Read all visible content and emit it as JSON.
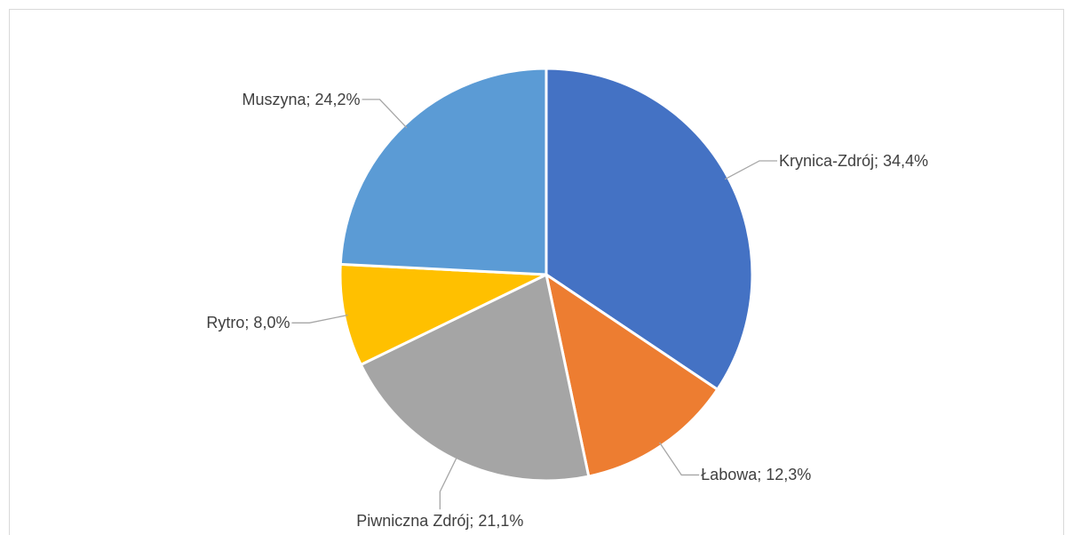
{
  "chart_data": {
    "type": "pie",
    "values": [
      34.4,
      12.3,
      21.1,
      8.0,
      24.2
    ],
    "value_labels": [
      "Krynica-Zdrój; 34,4%",
      "Łabowa; 12,3%",
      "Piwniczna Zdrój; 21,1%",
      "Rytro; 8,0%",
      "Muszyna; 24,2%"
    ],
    "colors": [
      "#4472c4",
      "#ed7d31",
      "#a5a5a5",
      "#ffc000",
      "#5b9bd5"
    ]
  }
}
